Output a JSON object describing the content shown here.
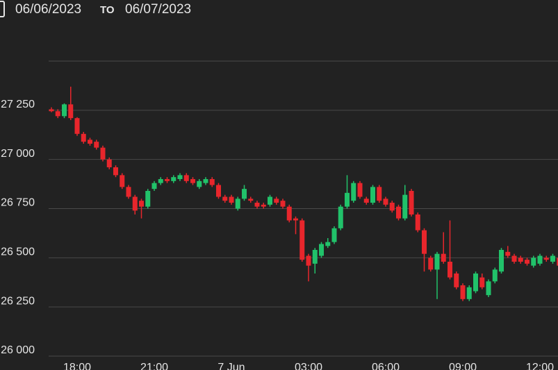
{
  "header": {
    "from": "06/06/2023",
    "to_word": "TO",
    "to": "06/07/2023"
  },
  "chart_data": {
    "type": "candlestick",
    "categories": [
      null,
      null,
      null,
      null,
      "18:00",
      null,
      null,
      null,
      null,
      null,
      null,
      null,
      null,
      null,
      null,
      null,
      "21:00",
      null,
      null,
      null,
      null,
      null,
      null,
      null,
      null,
      null,
      null,
      null,
      "7 Jun",
      null,
      null,
      null,
      null,
      null,
      null,
      null,
      null,
      null,
      null,
      null,
      "03:00",
      null,
      null,
      null,
      null,
      null,
      null,
      null,
      null,
      null,
      null,
      null,
      "06:00",
      null,
      null,
      null,
      null,
      null,
      null,
      null,
      null,
      null,
      null,
      null,
      "09:00",
      null,
      null,
      null,
      null,
      null,
      null,
      null,
      null,
      null,
      null,
      null,
      "12:00",
      null,
      null,
      null
    ],
    "open": [
      27255,
      27245,
      27220,
      27280,
      27210,
      27130,
      27100,
      27090,
      27060,
      27000,
      26960,
      26920,
      26860,
      26810,
      26790,
      26760,
      26850,
      26880,
      26900,
      26890,
      26900,
      26920,
      26900,
      26860,
      26880,
      26900,
      26870,
      26810,
      26810,
      26750,
      26800,
      26800,
      26780,
      26770,
      26770,
      26800,
      26790,
      26760,
      26700,
      26690,
      26510,
      26470,
      26510,
      26560,
      26580,
      26650,
      26760,
      26790,
      26880,
      26800,
      26780,
      26860,
      26800,
      26780,
      26760,
      26700,
      26840,
      26720,
      26640,
      26500,
      26440,
      26520,
      26480,
      26420,
      26360,
      26290,
      26330,
      26400,
      26310,
      26380,
      26430,
      26530,
      26510,
      26500,
      26490,
      26460,
      26470,
      26500,
      26480,
      26500
    ],
    "high": [
      27265,
      27255,
      27285,
      27370,
      27215,
      27140,
      27110,
      27100,
      27070,
      27010,
      26970,
      26930,
      26870,
      26820,
      26800,
      26850,
      26890,
      26910,
      26910,
      26920,
      26930,
      26930,
      26910,
      26900,
      26910,
      26910,
      26880,
      26820,
      26820,
      26810,
      26870,
      26810,
      26790,
      26780,
      26820,
      26810,
      26800,
      26770,
      26710,
      26700,
      26520,
      26550,
      26580,
      26600,
      26660,
      26770,
      26920,
      26890,
      26890,
      26810,
      26870,
      26870,
      26810,
      26790,
      26770,
      26870,
      26850,
      26730,
      26650,
      26510,
      26530,
      26630,
      26690,
      26430,
      26370,
      26360,
      26430,
      26420,
      26390,
      26450,
      26550,
      26560,
      26520,
      26510,
      26500,
      26510,
      26520,
      26510,
      26520,
      26510
    ],
    "low": [
      27240,
      27210,
      27210,
      27200,
      27120,
      27080,
      27070,
      27050,
      26990,
      26950,
      26910,
      26850,
      26800,
      26720,
      26700,
      26750,
      26840,
      26870,
      26880,
      26880,
      26890,
      26880,
      26870,
      26850,
      26870,
      26860,
      26800,
      26780,
      26770,
      26740,
      26790,
      26780,
      26750,
      26750,
      26760,
      26770,
      26750,
      26680,
      26620,
      26480,
      26380,
      26420,
      26500,
      26550,
      26570,
      26640,
      26750,
      26780,
      26800,
      26770,
      26770,
      26780,
      26760,
      26730,
      26690,
      26690,
      26710,
      26630,
      26430,
      26430,
      26290,
      26470,
      26390,
      26340,
      26280,
      26280,
      26320,
      26340,
      26300,
      26370,
      26420,
      26500,
      26470,
      26470,
      26460,
      26450,
      26460,
      26480,
      26470,
      26450
    ],
    "close": [
      27245,
      27220,
      27280,
      27210,
      27130,
      27090,
      27080,
      27060,
      27000,
      26960,
      26920,
      26860,
      26810,
      26740,
      26760,
      26840,
      26880,
      26900,
      26890,
      26910,
      26920,
      26890,
      26880,
      26890,
      26900,
      26870,
      26810,
      26790,
      26780,
      26800,
      26850,
      26790,
      26760,
      26760,
      26810,
      26780,
      26760,
      26690,
      26690,
      26490,
      26460,
      26540,
      26570,
      26580,
      26650,
      26760,
      26830,
      26880,
      26810,
      26780,
      26860,
      26790,
      26770,
      26740,
      26700,
      26820,
      26720,
      26640,
      26520,
      26440,
      26520,
      26480,
      26400,
      26350,
      26290,
      26350,
      26420,
      26350,
      26380,
      26440,
      26540,
      26510,
      26480,
      26480,
      26470,
      26500,
      26510,
      26490,
      26510,
      26460
    ],
    "up_color": "#21c26a",
    "down_color": "#e8262c",
    "ylim": [
      26000,
      27500
    ],
    "yticks": [
      {
        "value": 26000,
        "label": "26 000"
      },
      {
        "value": 26250,
        "label": "26 250"
      },
      {
        "value": 26500,
        "label": "26 500"
      },
      {
        "value": 26750,
        "label": "26 750"
      },
      {
        "value": 27000,
        "label": "27 000"
      },
      {
        "value": 27250,
        "label": "27 250"
      }
    ],
    "grid": true
  }
}
